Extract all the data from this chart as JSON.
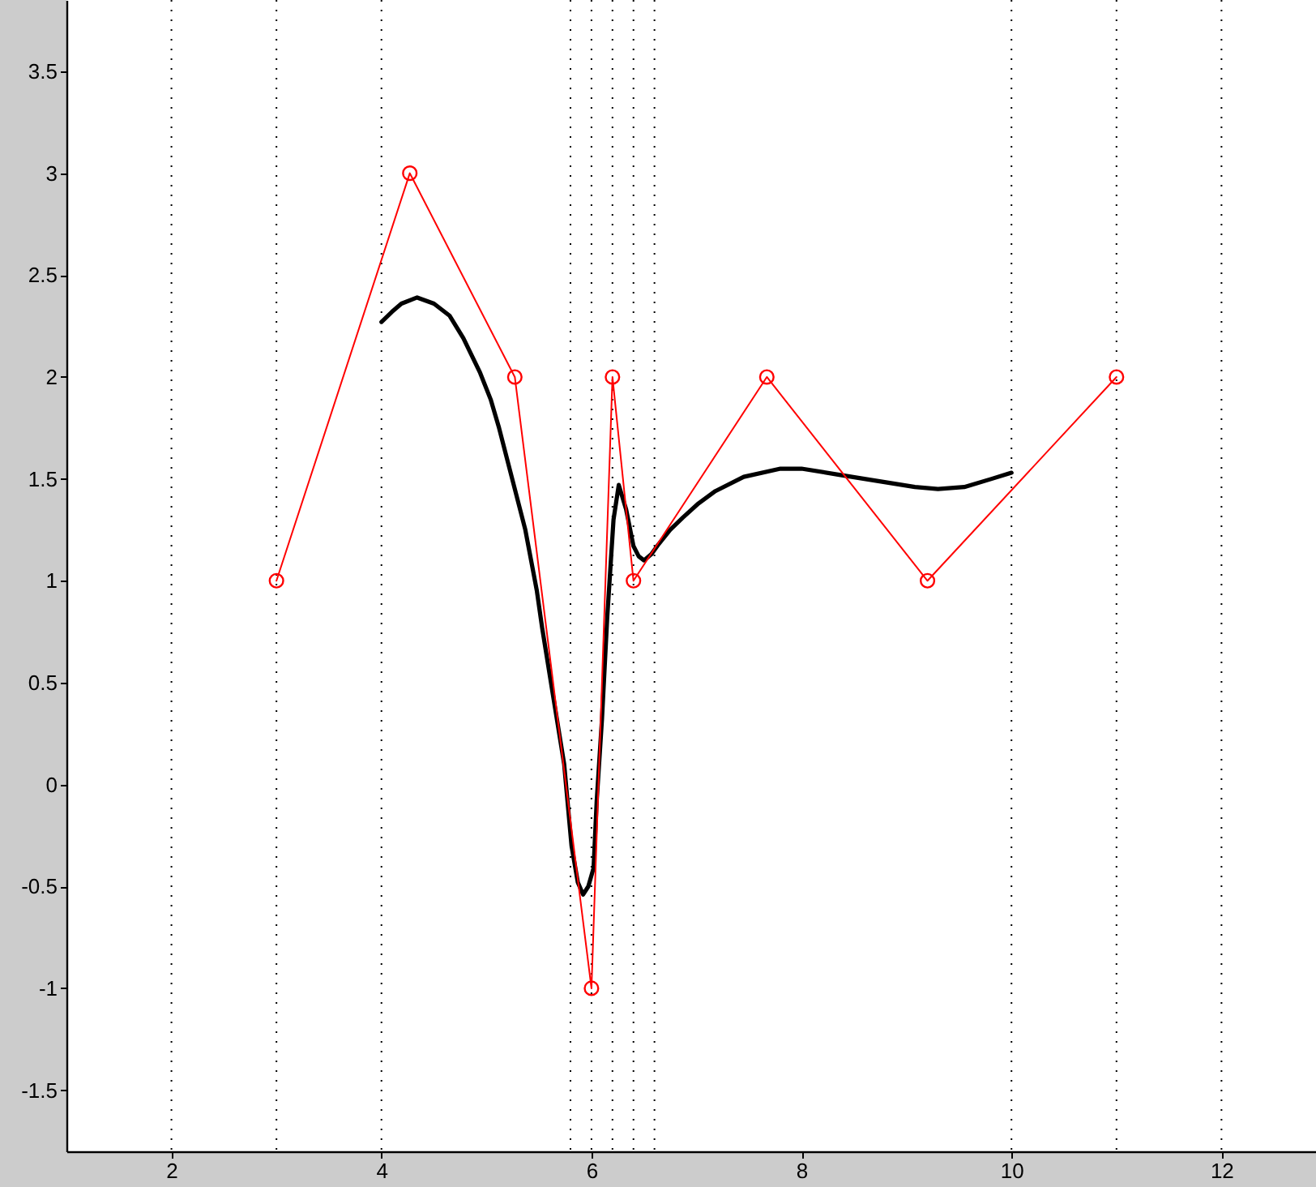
{
  "chart_data": {
    "type": "line",
    "xlim": [
      1,
      12.9
    ],
    "ylim": [
      -1.8,
      3.85
    ],
    "xticks": [
      2,
      4,
      6,
      8,
      10,
      12
    ],
    "yticks": [
      -1.5,
      -1,
      -0.5,
      0,
      0.5,
      1,
      1.5,
      2,
      2.5,
      3,
      3.5
    ],
    "grid": false,
    "series": [
      {
        "color": "#000000",
        "marker": "none",
        "line_style": "solid",
        "x": [
          4.0,
          4.1,
          4.19,
          4.34,
          4.5,
          4.65,
          4.78,
          4.94,
          5.04,
          5.12,
          5.25,
          5.37,
          5.48,
          5.53,
          5.63,
          5.74,
          5.81,
          5.87,
          5.92,
          5.97,
          6.02,
          6.05,
          6.1,
          6.15,
          6.21,
          6.26,
          6.33,
          6.4,
          6.45,
          6.5,
          6.57,
          6.64,
          6.75,
          6.87,
          7.02,
          7.18,
          7.45,
          7.8,
          8.0,
          8.36,
          8.72,
          9.08,
          9.3,
          9.55,
          9.81,
          10.0
        ],
        "values": [
          2.27,
          2.32,
          2.36,
          2.39,
          2.36,
          2.3,
          2.19,
          2.02,
          1.89,
          1.75,
          1.49,
          1.25,
          0.95,
          0.77,
          0.45,
          0.1,
          -0.3,
          -0.48,
          -0.54,
          -0.5,
          -0.41,
          -0.08,
          0.32,
          0.82,
          1.3,
          1.47,
          1.35,
          1.17,
          1.12,
          1.1,
          1.13,
          1.18,
          1.25,
          1.31,
          1.38,
          1.44,
          1.51,
          1.55,
          1.55,
          1.52,
          1.49,
          1.46,
          1.45,
          1.46,
          1.5,
          1.53
        ]
      },
      {
        "color": "#ff0000",
        "marker": "circle",
        "line_style": "solid",
        "x": [
          3,
          4.27,
          5.27,
          6,
          6.2,
          6.4,
          7.67,
          9.2,
          11
        ],
        "values": [
          1,
          3,
          2,
          -1,
          2,
          1,
          2,
          1,
          2
        ]
      }
    ],
    "ref_lines": [
      {
        "axis": "x",
        "value": 2,
        "color": "#000000",
        "line_style": "dotted"
      },
      {
        "axis": "x",
        "value": 3,
        "color": "#000000",
        "line_style": "dotted"
      },
      {
        "axis": "x",
        "value": 4,
        "color": "#000000",
        "line_style": "dotted"
      },
      {
        "axis": "x",
        "value": 5.8,
        "color": "#000000",
        "line_style": "dotted"
      },
      {
        "axis": "x",
        "value": 6,
        "color": "#000000",
        "line_style": "dotted"
      },
      {
        "axis": "x",
        "value": 6.2,
        "color": "#000000",
        "line_style": "dotted"
      },
      {
        "axis": "x",
        "value": 6.4,
        "color": "#000000",
        "line_style": "dotted"
      },
      {
        "axis": "x",
        "value": 6.6,
        "color": "#000000",
        "line_style": "dotted"
      },
      {
        "axis": "x",
        "value": 10,
        "color": "#000000",
        "line_style": "dotted"
      },
      {
        "axis": "x",
        "value": 11,
        "color": "#000000",
        "line_style": "dotted"
      },
      {
        "axis": "x",
        "value": 12,
        "color": "#000000",
        "line_style": "dotted"
      }
    ]
  }
}
